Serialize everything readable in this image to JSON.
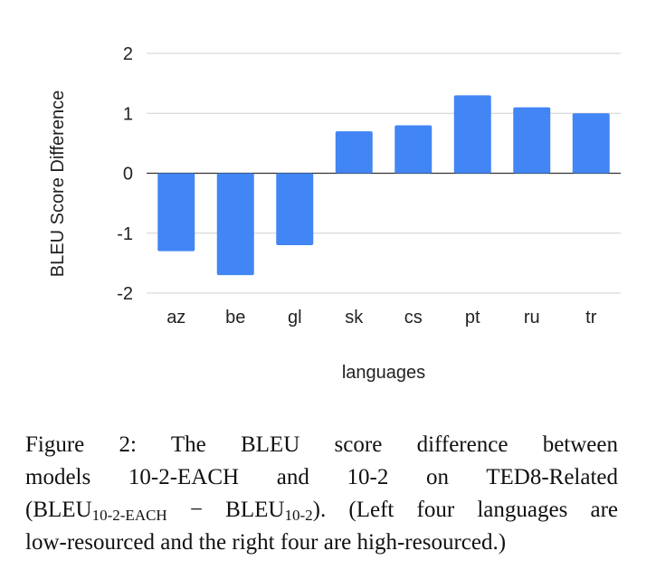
{
  "chart_data": {
    "type": "bar",
    "categories": [
      "az",
      "be",
      "gl",
      "sk",
      "cs",
      "pt",
      "ru",
      "tr"
    ],
    "values": [
      -1.3,
      -1.7,
      -1.2,
      0.7,
      0.8,
      1.3,
      1.1,
      1.0
    ],
    "xlabel": "languages",
    "ylabel": "BLEU Score Difference",
    "ylim": [
      -2,
      2
    ],
    "yticks": [
      "2",
      "1",
      "0",
      "-1",
      "-2"
    ],
    "grid": true,
    "bar_color": "#4285f4"
  },
  "caption": {
    "line1": "Figure 2:  The BLEU score difference between",
    "line2": "models 10-2-EACH and 10-2 on TED8-Related",
    "line3_pre": "(BLEU",
    "line3_sub1": "10-2-EACH",
    "line3_mid": " − BLEU",
    "line3_sub2": "10-2",
    "line3_post": "). (Left four languages are",
    "line4": "low-resourced and the right four are high-resourced.)"
  }
}
